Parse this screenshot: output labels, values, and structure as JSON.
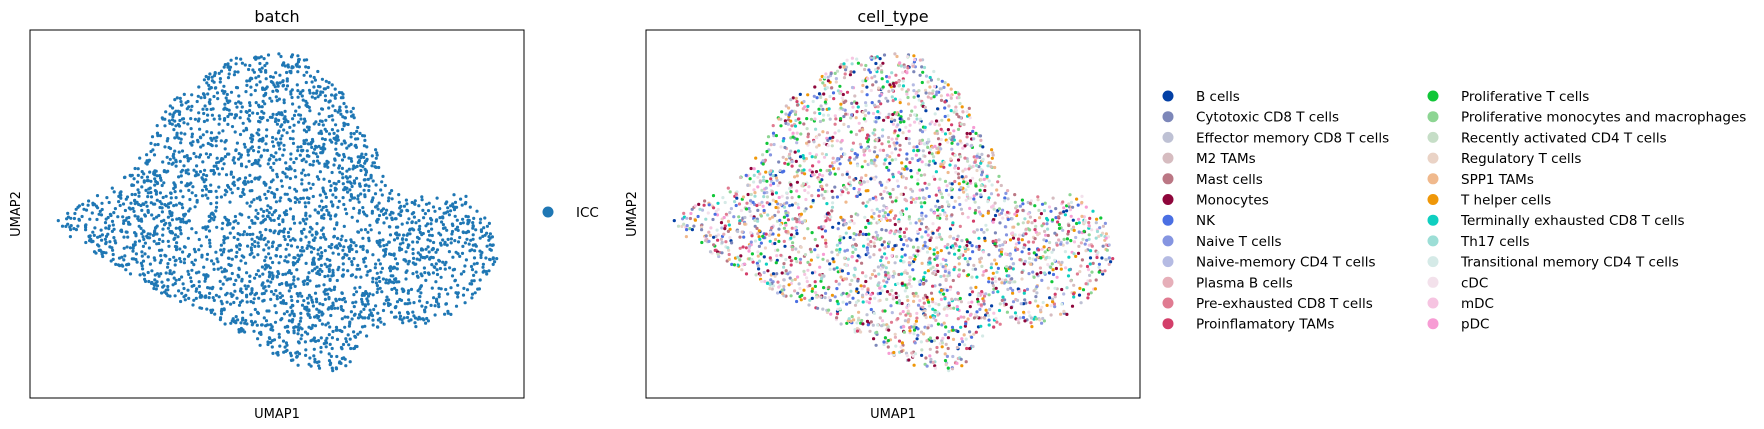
{
  "chart_data": [
    {
      "type": "scatter",
      "title": "batch",
      "xlabel": "UMAP1",
      "ylabel": "UMAP2",
      "grid": false,
      "axis_ticks": false,
      "legend_placement": "right",
      "series": [
        {
          "name": "ICC",
          "color": "#1f77b4"
        }
      ]
    },
    {
      "type": "scatter",
      "title": "cell_type",
      "xlabel": "UMAP1",
      "ylabel": "UMAP2",
      "grid": false,
      "axis_ticks": false,
      "legend_placement": "right",
      "series": [
        {
          "name": "B cells",
          "color": "#023fa5"
        },
        {
          "name": "Cytotoxic CD8 T cells",
          "color": "#7d87b9"
        },
        {
          "name": "Effector memory CD8 T cells",
          "color": "#bec1d4"
        },
        {
          "name": "M2 TAMs",
          "color": "#d6bcc0"
        },
        {
          "name": "Mast cells",
          "color": "#bb7784"
        },
        {
          "name": "Monocytes",
          "color": "#8e063b"
        },
        {
          "name": "NK",
          "color": "#4a6fe3"
        },
        {
          "name": "Naive T cells",
          "color": "#8595e1"
        },
        {
          "name": "Naive-memory CD4 T cells",
          "color": "#b5bbe3"
        },
        {
          "name": "Plasma B cells",
          "color": "#e6afb9"
        },
        {
          "name": "Pre-exhausted CD8 T cells",
          "color": "#e07b91"
        },
        {
          "name": "Proinflamatory TAMs",
          "color": "#d33f6a"
        },
        {
          "name": "Proliferative T cells",
          "color": "#11c638"
        },
        {
          "name": "Proliferative monocytes and macrophages",
          "color": "#8dd593"
        },
        {
          "name": "Recently activated CD4 T cells",
          "color": "#c6dec7"
        },
        {
          "name": "Regulatory T cells",
          "color": "#ead3c6"
        },
        {
          "name": "SPP1 TAMs",
          "color": "#f0b98d"
        },
        {
          "name": "T helper cells",
          "color": "#ef9708"
        },
        {
          "name": "Terminally exhausted CD8 T cells",
          "color": "#0fcfc0"
        },
        {
          "name": "Th17 cells",
          "color": "#9cded6"
        },
        {
          "name": "Transitional memory CD4 T cells",
          "color": "#d5eae7"
        },
        {
          "name": "cDC",
          "color": "#f3e1eb"
        },
        {
          "name": "mDC",
          "color": "#f6c4e1"
        },
        {
          "name": "pDC",
          "color": "#f79cd4"
        }
      ]
    }
  ]
}
